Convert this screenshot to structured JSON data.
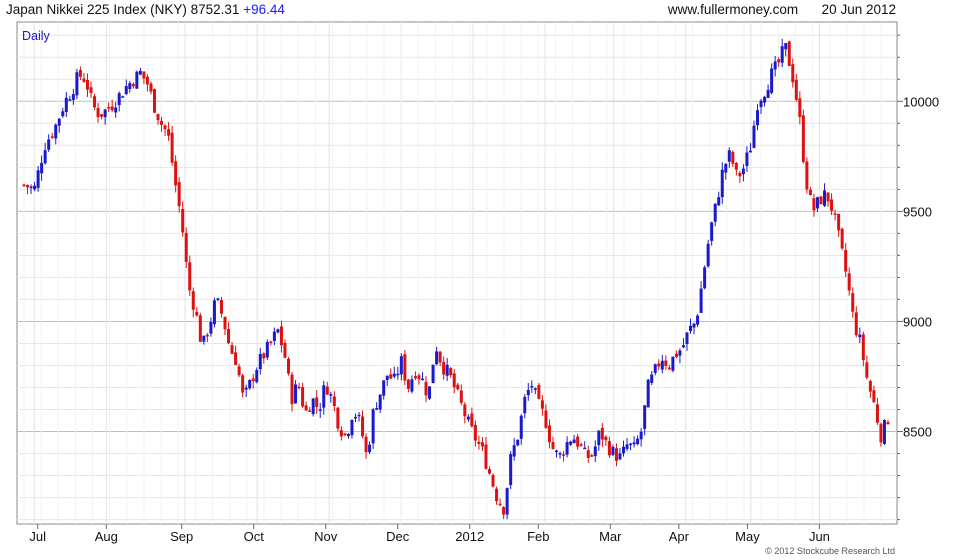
{
  "header": {
    "index_name": "Japan Nikkei 225 Index (NKY)",
    "last_price": "8752.31",
    "change": "+96.44",
    "site": "www.fullermoney.com",
    "date": "20 Jun 2012"
  },
  "colors": {
    "up": "#1a1acc",
    "down": "#dd1111",
    "grid": "#d4d4d4",
    "frame": "#888888"
  },
  "chart_data": {
    "type": "candlestick",
    "period_label": "Daily",
    "copyright": "© 2012 Stockcube Research Ltd",
    "y_axis": {
      "min": 8080,
      "max": 10360,
      "ticks": [
        10000,
        9500,
        9000,
        8500
      ],
      "position": "right"
    },
    "x_axis": {
      "labels": [
        "Jul",
        "Aug",
        "Sep",
        "Oct",
        "Nov",
        "Dec",
        "2012",
        "Feb",
        "Mar",
        "Apr",
        "May",
        "Jun"
      ]
    },
    "grid": true,
    "trading_days": 246,
    "close_path": [
      [
        0,
        9620
      ],
      [
        3,
        9600
      ],
      [
        6,
        9800
      ],
      [
        9,
        9880
      ],
      [
        12,
        10000
      ],
      [
        14,
        10050
      ],
      [
        16,
        10120
      ],
      [
        18,
        10100
      ],
      [
        20,
        9980
      ],
      [
        22,
        9940
      ],
      [
        24,
        9960
      ],
      [
        26,
        9990
      ],
      [
        28,
        10030
      ],
      [
        30,
        10070
      ],
      [
        32,
        10100
      ],
      [
        34,
        10130
      ],
      [
        36,
        10080
      ],
      [
        38,
        9980
      ],
      [
        40,
        9900
      ],
      [
        42,
        9850
      ],
      [
        44,
        9640
      ],
      [
        46,
        9450
      ],
      [
        48,
        9160
      ],
      [
        50,
        9050
      ],
      [
        52,
        8880
      ],
      [
        54,
        8980
      ],
      [
        56,
        9100
      ],
      [
        58,
        9020
      ],
      [
        60,
        8880
      ],
      [
        62,
        8820
      ],
      [
        64,
        8640
      ],
      [
        66,
        8720
      ],
      [
        68,
        8800
      ],
      [
        70,
        8850
      ],
      [
        72,
        8900
      ],
      [
        74,
        8960
      ],
      [
        76,
        8850
      ],
      [
        78,
        8650
      ],
      [
        80,
        8720
      ],
      [
        82,
        8580
      ],
      [
        84,
        8650
      ],
      [
        86,
        8600
      ],
      [
        88,
        8720
      ],
      [
        90,
        8640
      ],
      [
        92,
        8520
      ],
      [
        94,
        8480
      ],
      [
        96,
        8600
      ],
      [
        98,
        8540
      ],
      [
        100,
        8380
      ],
      [
        102,
        8600
      ],
      [
        104,
        8680
      ],
      [
        106,
        8760
      ],
      [
        108,
        8730
      ],
      [
        110,
        8820
      ],
      [
        112,
        8700
      ],
      [
        114,
        8780
      ],
      [
        116,
        8740
      ],
      [
        118,
        8660
      ],
      [
        120,
        8900
      ],
      [
        122,
        8800
      ],
      [
        124,
        8760
      ],
      [
        126,
        8680
      ],
      [
        128,
        8600
      ],
      [
        130,
        8520
      ],
      [
        132,
        8460
      ],
      [
        134,
        8400
      ],
      [
        136,
        8300
      ],
      [
        138,
        8200
      ],
      [
        140,
        8150
      ],
      [
        142,
        8380
      ],
      [
        144,
        8480
      ],
      [
        146,
        8640
      ],
      [
        148,
        8720
      ],
      [
        150,
        8620
      ],
      [
        152,
        8560
      ],
      [
        154,
        8430
      ],
      [
        156,
        8380
      ],
      [
        158,
        8440
      ],
      [
        160,
        8480
      ],
      [
        162,
        8440
      ],
      [
        164,
        8380
      ],
      [
        166,
        8400
      ],
      [
        168,
        8500
      ],
      [
        170,
        8440
      ],
      [
        172,
        8400
      ],
      [
        174,
        8380
      ],
      [
        176,
        8440
      ],
      [
        178,
        8420
      ],
      [
        180,
        8500
      ],
      [
        182,
        8700
      ],
      [
        184,
        8770
      ],
      [
        186,
        8840
      ],
      [
        188,
        8800
      ],
      [
        190,
        8850
      ],
      [
        192,
        8880
      ],
      [
        194,
        8960
      ],
      [
        196,
        9000
      ],
      [
        198,
        9200
      ],
      [
        200,
        9400
      ],
      [
        202,
        9540
      ],
      [
        204,
        9700
      ],
      [
        206,
        9760
      ],
      [
        208,
        9650
      ],
      [
        210,
        9700
      ],
      [
        212,
        9800
      ],
      [
        214,
        10000
      ],
      [
        216,
        10050
      ],
      [
        218,
        10120
      ],
      [
        220,
        10170
      ],
      [
        222,
        10250
      ],
      [
        224,
        10130
      ],
      [
        226,
        9950
      ],
      [
        228,
        9650
      ],
      [
        230,
        9500
      ],
      [
        232,
        9550
      ],
      [
        234,
        9580
      ],
      [
        236,
        9500
      ],
      [
        238,
        9350
      ],
      [
        240,
        9200
      ],
      [
        242,
        9000
      ],
      [
        244,
        8900
      ],
      [
        246,
        8730
      ],
      [
        248,
        8620
      ],
      [
        250,
        8480
      ],
      [
        252,
        8560
      ]
    ]
  }
}
